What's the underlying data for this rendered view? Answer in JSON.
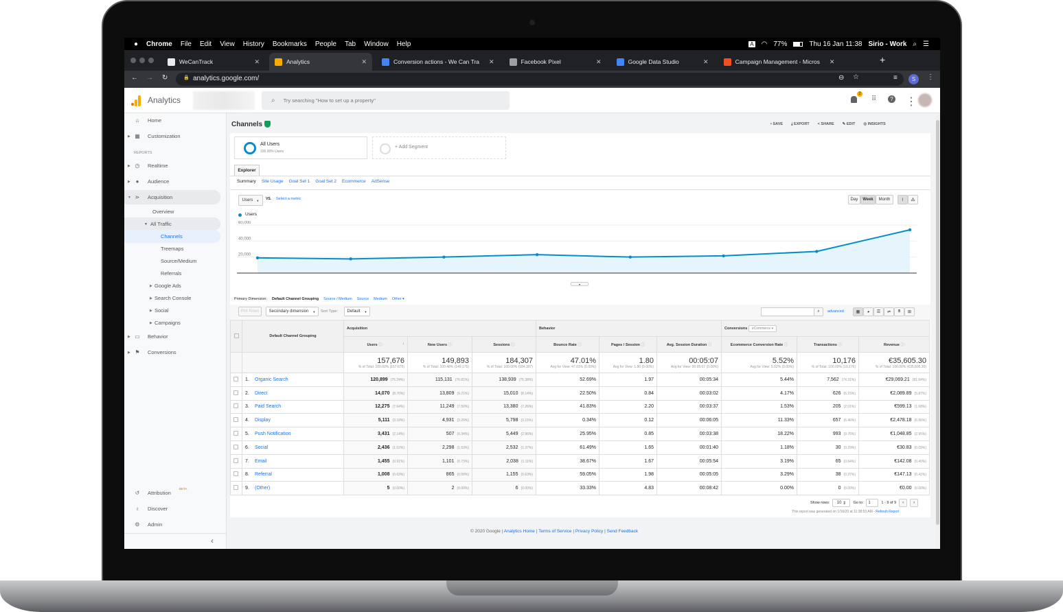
{
  "menubar": {
    "apple": "",
    "app": "Chrome",
    "items": [
      "File",
      "Edit",
      "View",
      "History",
      "Bookmarks",
      "People",
      "Tab",
      "Window",
      "Help"
    ],
    "input_source": "A",
    "battery": "77%",
    "datetime": "Thu 16 Jan  11:38",
    "user": "Sirio - Work"
  },
  "tabs": [
    {
      "title": "WeCanTrack",
      "icon_color": "#e8eaed",
      "active": false
    },
    {
      "title": "Analytics",
      "icon_color": "#f9ab00",
      "active": true
    },
    {
      "title": "Conversion actions - We Can Tra",
      "icon_color": "#4285f4",
      "active": false
    },
    {
      "title": "Facebook Pixel",
      "icon_color": "#9aa0a6",
      "active": false
    },
    {
      "title": "Google Data Studio",
      "icon_color": "#4285f4",
      "active": false
    },
    {
      "title": "Campaign Management - Micros",
      "icon_color": "#f25022",
      "active": false
    }
  ],
  "address": {
    "url": "analytics.google.com/",
    "profile_initial": "S"
  },
  "ga_header": {
    "product": "Analytics",
    "search_placeholder": "Try searching \"How to set up a property\"",
    "notifications": "2"
  },
  "sidebar": {
    "home": "Home",
    "customization": "Customization",
    "reports_label": "REPORTS",
    "realtime": "Realtime",
    "audience": "Audience",
    "acquisition": "Acquisition",
    "overview": "Overview",
    "all_traffic": "All Traffic",
    "channels": "Channels",
    "treemaps": "Treemaps",
    "source_medium": "Source/Medium",
    "referrals": "Referrals",
    "google_ads": "Google Ads",
    "search_console": "Search Console",
    "social": "Social",
    "campaigns": "Campaigns",
    "behavior": "Behavior",
    "conversions": "Conversions",
    "attribution": "Attribution",
    "beta": "BETA",
    "discover": "Discover",
    "admin": "Admin",
    "collapse": "‹"
  },
  "report": {
    "title": "Channels",
    "actions": {
      "save": "SAVE",
      "export": "EXPORT",
      "share": "SHARE",
      "edit": "EDIT",
      "insights": "INSIGHTS"
    },
    "segment": {
      "name": "All Users",
      "sub": "100.00% Users",
      "add": "+ Add Segment"
    },
    "explorer_tab": "Explorer",
    "subtabs": [
      "Summary",
      "Site Usage",
      "Goal Set 1",
      "Goal Set 2",
      "Ecommerce",
      "AdSense"
    ],
    "metric_select": "Users",
    "vs": "VS.",
    "select_metric": "Select a metric",
    "granularity": {
      "day": "Day",
      "week": "Week",
      "month": "Month",
      "selected": "Week"
    },
    "primary_dimension": {
      "label": "Primary Dimension:",
      "current": "Default Channel Grouping",
      "options": [
        "Source / Medium",
        "Source",
        "Medium",
        "Other"
      ]
    },
    "plot_rows": "Plot Rows",
    "secondary_dimension": "Secondary dimension",
    "sort_type_label": "Sort Type:",
    "sort_type": "Default",
    "advanced": "advanced",
    "conversions_label": "Conversions",
    "conversions_select": "eCommerce"
  },
  "chart_data": {
    "type": "area",
    "series": [
      {
        "name": "Users",
        "color": "#058dc7",
        "values": [
          19000,
          17700,
          20000,
          23000,
          20000,
          21500,
          27000,
          54000
        ]
      }
    ],
    "y_ticks": [
      "20,000",
      "40,000",
      "60,000"
    ],
    "ylim": [
      0,
      60000
    ],
    "granularity": "Week",
    "legend": "top-left"
  },
  "table": {
    "groups": {
      "acquisition": "Acquisition",
      "behavior": "Behavior"
    },
    "dimension_header": "Default Channel Grouping",
    "columns": [
      "Users",
      "New Users",
      "Sessions",
      "Bounce Rate",
      "Pages / Session",
      "Avg. Session Duration",
      "Ecommerce Conversion Rate",
      "Transactions",
      "Revenue"
    ],
    "totals": [
      {
        "value": "157,676",
        "sub": "% of Total: 100.00% (157,676)"
      },
      {
        "value": "149,893",
        "sub": "% of Total: 100.48% (149,175)"
      },
      {
        "value": "184,307",
        "sub": "% of Total: 100.00% (184,307)"
      },
      {
        "value": "47.01%",
        "sub": "Avg for View: 47.01% (0.00%)"
      },
      {
        "value": "1.80",
        "sub": "Avg for View: 1.80 (0.00%)"
      },
      {
        "value": "00:05:07",
        "sub": "Avg for View: 00:05:07 (0.00%)"
      },
      {
        "value": "5.52%",
        "sub": "Avg for View: 5.52% (0.00%)"
      },
      {
        "value": "10,176",
        "sub": "% of Total: 100.00% (10,176)"
      },
      {
        "value": "€35,605.30",
        "sub": "% of Total: 100.00% (€35,605.30)"
      }
    ],
    "rows": [
      {
        "n": "1.",
        "channel": "Organic Search",
        "cells": [
          [
            "120,899",
            "(75.24%)"
          ],
          [
            "115,131",
            "(76.81%)"
          ],
          [
            "138,939",
            "(75.38%)"
          ],
          [
            "52.69%",
            ""
          ],
          [
            "1.97",
            ""
          ],
          [
            "00:05:34",
            ""
          ],
          [
            "5.44%",
            ""
          ],
          [
            "7,562",
            "(74.31%)"
          ],
          [
            "€29,069.21",
            "(81.64%)"
          ]
        ]
      },
      {
        "n": "2.",
        "channel": "Direct",
        "cells": [
          [
            "14,070",
            "(8.76%)"
          ],
          [
            "13,809",
            "(9.21%)"
          ],
          [
            "15,010",
            "(8.14%)"
          ],
          [
            "22.50%",
            ""
          ],
          [
            "0.84",
            ""
          ],
          [
            "00:03:02",
            ""
          ],
          [
            "4.17%",
            ""
          ],
          [
            "626",
            "(6.15%)"
          ],
          [
            "€2,089.89",
            "(5.87%)"
          ]
        ]
      },
      {
        "n": "3.",
        "channel": "Paid Search",
        "cells": [
          [
            "12,275",
            "(7.64%)"
          ],
          [
            "11,249",
            "(7.50%)"
          ],
          [
            "13,380",
            "(7.26%)"
          ],
          [
            "41.83%",
            ""
          ],
          [
            "2.20",
            ""
          ],
          [
            "00:03:37",
            ""
          ],
          [
            "1.53%",
            ""
          ],
          [
            "205",
            "(2.01%)"
          ],
          [
            "€599.13",
            "(1.68%)"
          ]
        ]
      },
      {
        "n": "4.",
        "channel": "Display",
        "cells": [
          [
            "5,111",
            "(3.18%)"
          ],
          [
            "4,931",
            "(3.29%)"
          ],
          [
            "5,798",
            "(3.15%)"
          ],
          [
            "0.34%",
            ""
          ],
          [
            "0.12",
            ""
          ],
          [
            "00:06:05",
            ""
          ],
          [
            "11.33%",
            ""
          ],
          [
            "657",
            "(6.46%)"
          ],
          [
            "€2,478.18",
            "(6.96%)"
          ]
        ]
      },
      {
        "n": "5.",
        "channel": "Push Notification",
        "cells": [
          [
            "3,431",
            "(2.14%)"
          ],
          [
            "507",
            "(0.34%)"
          ],
          [
            "5,449",
            "(2.96%)"
          ],
          [
            "25.95%",
            ""
          ],
          [
            "0.85",
            ""
          ],
          [
            "00:03:38",
            ""
          ],
          [
            "18.22%",
            ""
          ],
          [
            "993",
            "(9.76%)"
          ],
          [
            "€1,048.85",
            "(2.95%)"
          ]
        ]
      },
      {
        "n": "6.",
        "channel": "Social",
        "cells": [
          [
            "2,436",
            "(1.52%)"
          ],
          [
            "2,298",
            "(1.53%)"
          ],
          [
            "2,532",
            "(1.37%)"
          ],
          [
            "61.49%",
            ""
          ],
          [
            "1.65",
            ""
          ],
          [
            "00:01:40",
            ""
          ],
          [
            "1.18%",
            ""
          ],
          [
            "30",
            "(0.29%)"
          ],
          [
            "€30.83",
            "(0.09%)"
          ]
        ]
      },
      {
        "n": "7.",
        "channel": "Email",
        "cells": [
          [
            "1,455",
            "(0.91%)"
          ],
          [
            "1,101",
            "(0.73%)"
          ],
          [
            "2,038",
            "(1.11%)"
          ],
          [
            "38.67%",
            ""
          ],
          [
            "1.67",
            ""
          ],
          [
            "00:05:54",
            ""
          ],
          [
            "3.19%",
            ""
          ],
          [
            "65",
            "(0.64%)"
          ],
          [
            "€142.08",
            "(0.40%)"
          ]
        ]
      },
      {
        "n": "8.",
        "channel": "Referral",
        "cells": [
          [
            "1,008",
            "(0.63%)"
          ],
          [
            "865",
            "(0.58%)"
          ],
          [
            "1,155",
            "(0.63%)"
          ],
          [
            "59.05%",
            ""
          ],
          [
            "1.98",
            ""
          ],
          [
            "00:05:05",
            ""
          ],
          [
            "3.29%",
            ""
          ],
          [
            "38",
            "(0.37%)"
          ],
          [
            "€147.13",
            "(0.41%)"
          ]
        ]
      },
      {
        "n": "9.",
        "channel": "(Other)",
        "cells": [
          [
            "5",
            "(0.00%)"
          ],
          [
            "2",
            "(0.00%)"
          ],
          [
            "6",
            "(0.00%)"
          ],
          [
            "33.33%",
            ""
          ],
          [
            "4.83",
            ""
          ],
          [
            "00:08:42",
            ""
          ],
          [
            "0.00%",
            ""
          ],
          [
            "0",
            "(0.00%)"
          ],
          [
            "€0.00",
            "(0.00%)"
          ]
        ]
      }
    ],
    "pagination": {
      "show_rows_label": "Show rows:",
      "show_rows": "10",
      "goto_label": "Go to:",
      "goto": "1",
      "range": "1 - 9 of 9"
    },
    "generated": "This report was generated on 1/16/20 at 11:38:53 AM - ",
    "refresh": "Refresh Report"
  },
  "footer": {
    "copyright": "© 2020 Google | ",
    "links": [
      "Analytics Home",
      "Terms of Service",
      "Privacy Policy",
      "Send Feedback"
    ]
  }
}
